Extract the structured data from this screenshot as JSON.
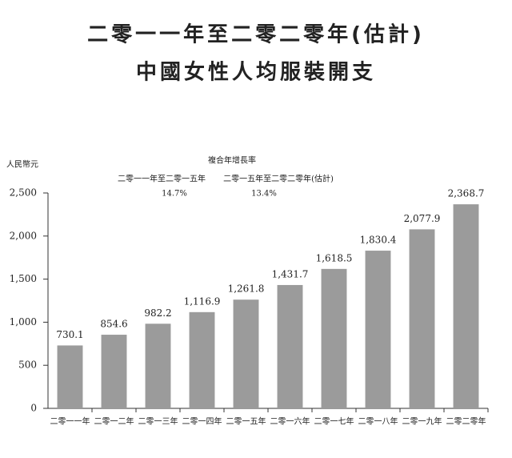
{
  "chart_data": {
    "type": "bar",
    "title": "二零一一年至二零二零年(估計)",
    "subtitle": "中國女性人均服裝開支",
    "y_axis_label": "人民幣元",
    "cagr": {
      "title": "複合年增長率",
      "periods": [
        {
          "label": "二零一一年至二零一五年",
          "rate": "14.7%"
        },
        {
          "label": "二零一五年至二零二零年(估計)",
          "rate": "13.4%"
        }
      ]
    },
    "categories": [
      "二零一一年",
      "二零一二年",
      "二零一三年",
      "二零一四年",
      "二零一五年",
      "二零一六年",
      "二零一七年",
      "二零一八年",
      "二零一九年",
      "二零二零年"
    ],
    "values": [
      730.1,
      854.6,
      982.2,
      1116.9,
      1261.8,
      1431.7,
      1618.5,
      1830.4,
      2077.9,
      2368.7
    ],
    "value_labels": [
      "730.1",
      "854.6",
      "982.2",
      "1,116.9",
      "1,261.8",
      "1,431.7",
      "1,618.5",
      "1,830.4",
      "2,077.9",
      "2,368.7"
    ],
    "color": "#9b9b9b",
    "ylim": [
      0,
      2500
    ],
    "yticks": [
      0,
      500,
      {
        "value": 1000,
        "label": "1,000"
      },
      {
        "value": 1500,
        "label": "1,500"
      },
      {
        "value": 2000,
        "label": "2,000"
      },
      {
        "value": 2500,
        "label": "2,500"
      }
    ],
    "grid": false
  }
}
